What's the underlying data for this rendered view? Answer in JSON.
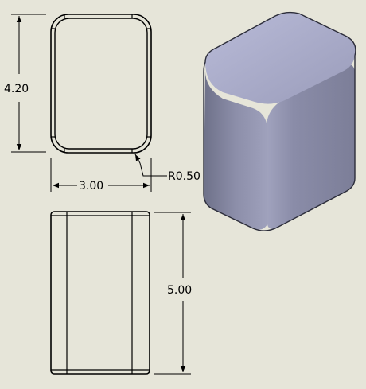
{
  "background_color": "#e6e5d9",
  "dimensions": {
    "top_view_height": "4.20",
    "top_view_width": "3.00",
    "fillet_radius": "R0.50",
    "front_view_height": "5.00"
  },
  "model_colors": {
    "top_face": "#a9abc9",
    "left_face": "#7d809b",
    "right_face": "#8d8fac",
    "edge": "#5d5f74"
  }
}
